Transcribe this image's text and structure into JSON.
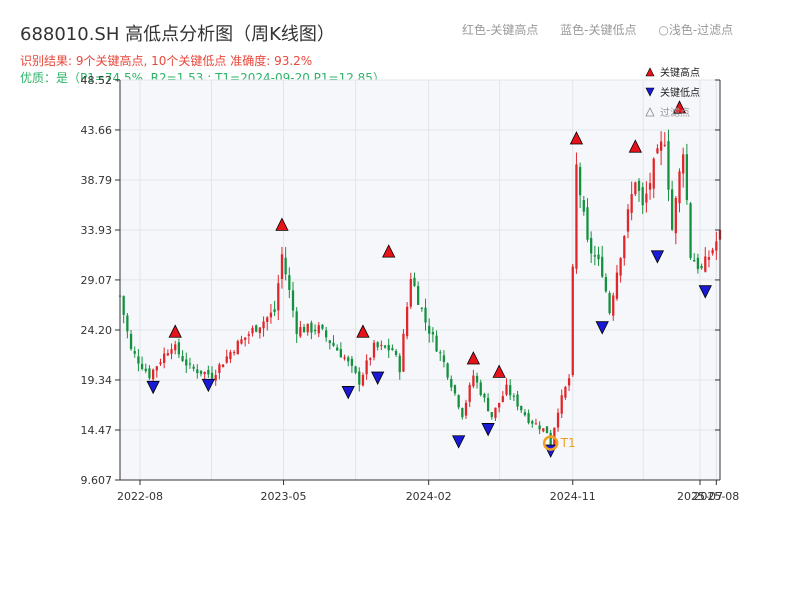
{
  "header": {
    "title": "688010.SH 高低点分析图（周K线图）",
    "subtitle": "识别结果: 9个关键高点, 10个关键低点  准确度: 93.2%",
    "quality": "优质：是（P1=74.5%, R2=1.53 ; T1=2024-09-20 P1=12.85）",
    "legend_red": "红色-关键高点",
    "legend_blue": "蓝色-关键低点",
    "legend_hollow": "○浅色-过滤点"
  },
  "colors": {
    "up": "#e0262b",
    "down": "#14913f",
    "high_marker": "#e8121b",
    "low_marker": "#1a1ad6",
    "t1": "#f0a020",
    "plot_bg": "#f5f7fa",
    "grid": "#e1e5ea",
    "axis": "#333333"
  },
  "chart_data": {
    "type": "candlestick",
    "x_range": [
      "2022-06-24",
      "2025-08-08"
    ],
    "y_range": [
      9.607,
      48.52
    ],
    "y_ticks": [
      9.607,
      14.47,
      19.34,
      24.2,
      29.07,
      33.93,
      38.79,
      43.66,
      48.52
    ],
    "y_tick_labels": [
      "9.607",
      "14.47",
      "19.34",
      "24.20",
      "29.07",
      "33.93",
      "38.79",
      "43.66",
      "48.52"
    ],
    "x_ticks": [
      "2022-08-01",
      "2023-05-01",
      "2024-02-01",
      "2024-11-01",
      "2025-07-01",
      "2025-08-01"
    ],
    "x_tick_labels": [
      "2022-08",
      "2023-05",
      "2024-02",
      "2024-11",
      "2025-07",
      "2025-08"
    ],
    "close_anchors": [
      [
        "2022-06-24",
        27.5
      ],
      [
        "2022-07-15",
        22.2
      ],
      [
        "2022-08-19",
        19.8
      ],
      [
        "2022-09-30",
        22.8
      ],
      [
        "2022-11-04",
        20.5
      ],
      [
        "2022-12-16",
        19.8
      ],
      [
        "2023-01-27",
        22.5
      ],
      [
        "2023-03-10",
        24.5
      ],
      [
        "2023-04-14",
        26.0
      ],
      [
        "2023-04-28",
        31.5
      ],
      [
        "2023-05-26",
        24.3
      ],
      [
        "2023-07-07",
        24.3
      ],
      [
        "2023-08-25",
        21.5
      ],
      [
        "2023-09-22",
        19.2
      ],
      [
        "2023-10-20",
        22.5
      ],
      [
        "2023-11-24",
        22.3
      ],
      [
        "2023-12-08",
        20.5
      ],
      [
        "2023-12-29",
        29.5
      ],
      [
        "2024-01-26",
        25.0
      ],
      [
        "2024-03-01",
        21.0
      ],
      [
        "2024-04-05",
        16.0
      ],
      [
        "2024-04-26",
        19.8
      ],
      [
        "2024-05-31",
        15.8
      ],
      [
        "2024-06-28",
        18.5
      ],
      [
        "2024-08-09",
        15.5
      ],
      [
        "2024-09-13",
        14.3
      ],
      [
        "2024-09-20",
        13.2
      ],
      [
        "2024-10-04",
        16.5
      ],
      [
        "2024-10-25",
        19.5
      ],
      [
        "2024-11-08",
        40.0
      ],
      [
        "2024-11-29",
        32.5
      ],
      [
        "2024-12-27",
        30.0
      ],
      [
        "2025-01-10",
        26.0
      ],
      [
        "2025-01-24",
        30.0
      ],
      [
        "2025-02-28",
        39.0
      ],
      [
        "2025-03-14",
        36.0
      ],
      [
        "2025-04-04",
        40.0
      ],
      [
        "2025-04-25",
        43.0
      ],
      [
        "2025-05-09",
        34.0
      ],
      [
        "2025-05-30",
        42.0
      ],
      [
        "2025-06-13",
        31.5
      ],
      [
        "2025-07-04",
        30.0
      ],
      [
        "2025-08-08",
        33.5
      ]
    ],
    "key_highs": [
      {
        "date": "2022-10-07",
        "price": 23.2
      },
      {
        "date": "2023-04-28",
        "price": 33.6
      },
      {
        "date": "2023-09-29",
        "price": 23.2
      },
      {
        "date": "2023-11-17",
        "price": 31.0
      },
      {
        "date": "2024-04-26",
        "price": 20.6
      },
      {
        "date": "2024-06-14",
        "price": 19.3
      },
      {
        "date": "2024-11-08",
        "price": 42.0
      },
      {
        "date": "2025-02-28",
        "price": 41.2
      },
      {
        "date": "2025-05-23",
        "price": 45.0
      }
    ],
    "key_lows": [
      {
        "date": "2022-08-26",
        "price": 19.5
      },
      {
        "date": "2022-12-09",
        "price": 19.7
      },
      {
        "date": "2023-09-01",
        "price": 19.0
      },
      {
        "date": "2023-10-27",
        "price": 20.4
      },
      {
        "date": "2024-03-29",
        "price": 14.2
      },
      {
        "date": "2024-05-24",
        "price": 15.4
      },
      {
        "date": "2024-09-20",
        "price": 13.3
      },
      {
        "date": "2024-12-27",
        "price": 25.3
      },
      {
        "date": "2025-04-11",
        "price": 32.2
      },
      {
        "date": "2025-07-11",
        "price": 28.8
      }
    ],
    "t1": {
      "label": "T1",
      "date": "2024-09-20",
      "price": 13.2
    },
    "legend": {
      "position": "top-right",
      "entries": [
        "关键高点",
        "关键低点",
        "过滤点"
      ]
    },
    "grid": true
  }
}
